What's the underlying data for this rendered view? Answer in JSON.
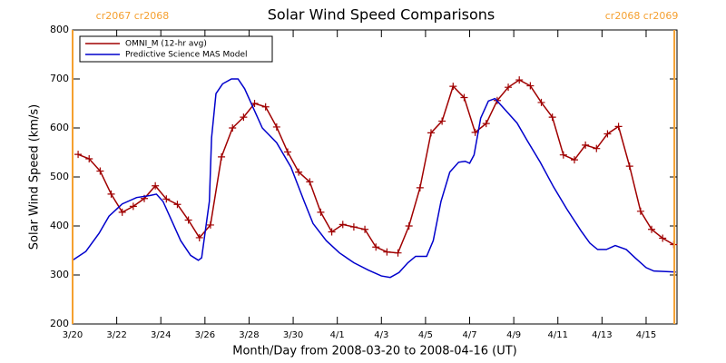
{
  "chart_data": {
    "type": "line",
    "title": "Solar Wind Speed Comparisons",
    "xlabel": "Month/Day from 2008-03-20 to 2008-04-16 (UT)",
    "ylabel": "Solar Wind Speed (km/s)",
    "xlim": [
      0,
      27.4
    ],
    "ylim": [
      200,
      800
    ],
    "xticks": [
      {
        "value": 0,
        "label": "3/20"
      },
      {
        "value": 2,
        "label": "3/22"
      },
      {
        "value": 4,
        "label": "3/24"
      },
      {
        "value": 6,
        "label": "3/26"
      },
      {
        "value": 8,
        "label": "3/28"
      },
      {
        "value": 10,
        "label": "3/30"
      },
      {
        "value": 12,
        "label": "4/1"
      },
      {
        "value": 14,
        "label": "4/3"
      },
      {
        "value": 16,
        "label": "4/5"
      },
      {
        "value": 18,
        "label": "4/7"
      },
      {
        "value": 20,
        "label": "4/9"
      },
      {
        "value": 22,
        "label": "4/11"
      },
      {
        "value": 24,
        "label": "4/13"
      },
      {
        "value": 26,
        "label": "4/15"
      }
    ],
    "yticks": [
      200,
      300,
      400,
      500,
      600,
      700,
      800
    ],
    "legend": "upper left",
    "boundaries": [
      {
        "x": 0,
        "label": "cr2067 cr2068"
      },
      {
        "x": 27.28,
        "label": "cr2068 cr2069"
      }
    ],
    "boundary_color": "#f5a030",
    "series": [
      {
        "name": "OMNI_M (12-hr avg)",
        "color": "#a00000",
        "markers": true,
        "x": [
          0.25,
          0.75,
          1.25,
          1.75,
          2.25,
          2.75,
          3.25,
          3.75,
          4.25,
          4.75,
          5.25,
          5.75,
          6.25,
          6.75,
          7.25,
          7.75,
          8.25,
          8.75,
          9.25,
          9.75,
          10.25,
          10.75,
          11.25,
          11.75,
          12.25,
          12.75,
          13.25,
          13.75,
          14.25,
          14.75,
          15.25,
          15.75,
          16.25,
          16.75,
          17.25,
          17.75,
          18.25,
          18.75,
          19.25,
          19.75,
          20.25,
          20.75,
          21.25,
          21.75,
          22.25,
          22.75,
          23.25,
          23.75,
          24.25,
          24.75,
          25.25,
          25.75,
          26.25,
          26.75,
          27.25
        ],
        "values": [
          546,
          537,
          512,
          465,
          428,
          440,
          456,
          482,
          455,
          444,
          412,
          376,
          402,
          541,
          600,
          622,
          650,
          643,
          602,
          551,
          510,
          490,
          428,
          388,
          403,
          398,
          393,
          357,
          347,
          345,
          400,
          478,
          590,
          614,
          685,
          662,
          591,
          609,
          656,
          683,
          698,
          686,
          652,
          622,
          545,
          535,
          565,
          558,
          588,
          603,
          522,
          430,
          393,
          375,
          362
        ]
      },
      {
        "name": "Predictive Science MAS Model",
        "color": "#0000cc",
        "markers": false,
        "x": [
          0,
          0.6,
          1.2,
          1.65,
          2.25,
          2.9,
          3.5,
          3.8,
          4.1,
          4.5,
          4.9,
          5.35,
          5.7,
          5.85,
          6.2,
          6.3,
          6.5,
          6.8,
          7.2,
          7.5,
          7.8,
          8.2,
          8.6,
          9.25,
          9.9,
          10.5,
          10.9,
          11.5,
          12.1,
          12.75,
          13.4,
          14,
          14.4,
          14.8,
          15.2,
          15.55,
          16.05,
          16.35,
          16.7,
          17.1,
          17.5,
          17.8,
          18.0,
          18.2,
          18.5,
          18.85,
          19.15,
          19.35,
          19.75,
          20.15,
          20.6,
          21.2,
          21.8,
          22.4,
          23.05,
          23.45,
          23.8,
          24.2,
          24.6,
          25.1,
          25.5,
          26.0,
          26.35,
          27.35
        ],
        "values": [
          330,
          348,
          385,
          420,
          445,
          458,
          462,
          465,
          450,
          410,
          370,
          340,
          330,
          335,
          450,
          580,
          670,
          690,
          700,
          700,
          680,
          640,
          600,
          570,
          520,
          450,
          405,
          370,
          345,
          325,
          310,
          298,
          295,
          305,
          325,
          338,
          338,
          370,
          450,
          510,
          530,
          532,
          528,
          545,
          620,
          655,
          660,
          650,
          630,
          610,
          575,
          530,
          480,
          435,
          390,
          365,
          352,
          352,
          360,
          352,
          335,
          315,
          308,
          306
        ]
      }
    ]
  }
}
